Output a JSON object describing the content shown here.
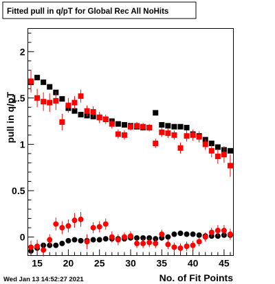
{
  "chart_data": {
    "type": "scatter",
    "title": "Fitted pull in q/pT for Global Rec All NoHits",
    "xlabel": "No. of Fit Points",
    "ylabel": "pull in q/pT",
    "timestamp": "Wed Jan 13 14:52:27 2021",
    "xlim": [
      13.5,
      46.5
    ],
    "ylim": [
      -0.2,
      2.25
    ],
    "xticks": [
      15,
      20,
      25,
      30,
      35,
      40,
      45
    ],
    "yticks": [
      0,
      0.5,
      1,
      1.5,
      2
    ],
    "ytick_labels": [
      "0",
      "0.5",
      "1",
      "1.5",
      "2"
    ],
    "grid": false,
    "legend": "none",
    "colors": {
      "series_black": "#000000",
      "series_red": "#ff0000"
    },
    "series": [
      {
        "color": "#000000",
        "marker": "square",
        "x": [
          14,
          15,
          16,
          17,
          18,
          19,
          20,
          21,
          22,
          23,
          24,
          25,
          26,
          27,
          28,
          29,
          30,
          31,
          32,
          33,
          34,
          35,
          36,
          37,
          38,
          39,
          40,
          41,
          42,
          43,
          44,
          45,
          46
        ],
        "y": [
          1.67,
          1.72,
          1.67,
          1.62,
          1.56,
          1.49,
          1.39,
          1.36,
          1.32,
          1.31,
          1.3,
          1.29,
          1.27,
          1.25,
          1.22,
          1.21,
          1.2,
          1.19,
          1.18,
          1.18,
          1.34,
          1.21,
          1.2,
          1.19,
          1.19,
          1.18,
          1.11,
          1.09,
          1.05,
          1.01,
          0.97,
          0.94,
          0.93
        ],
        "err": [
          0.01,
          0.01,
          0.01,
          0.01,
          0.01,
          0.01,
          0.01,
          0.01,
          0.01,
          0.01,
          0.01,
          0.01,
          0.01,
          0.01,
          0.01,
          0.01,
          0.01,
          0.01,
          0.01,
          0.01,
          0.01,
          0.01,
          0.01,
          0.01,
          0.01,
          0.01,
          0.01,
          0.01,
          0.01,
          0.01,
          0.01,
          0.01,
          0.01
        ]
      },
      {
        "color": "#ff0000",
        "marker": "square",
        "x": [
          14,
          15,
          16,
          17,
          18,
          19,
          20,
          21,
          22,
          23,
          24,
          25,
          26,
          27,
          28,
          29,
          30,
          31,
          32,
          33,
          34,
          35,
          36,
          37,
          38,
          39,
          40,
          41,
          42,
          43,
          44,
          45,
          46
        ],
        "y": [
          1.68,
          1.5,
          1.46,
          1.45,
          1.47,
          1.24,
          1.42,
          1.45,
          1.52,
          1.36,
          1.35,
          1.29,
          1.27,
          1.22,
          1.11,
          1.1,
          1.19,
          1.2,
          1.19,
          1.18,
          1.01,
          1.13,
          1.12,
          1.1,
          0.96,
          1.09,
          1.1,
          1.08,
          1.0,
          0.93,
          0.87,
          0.89,
          0.77
        ],
        "err": [
          0.12,
          0.1,
          0.1,
          0.1,
          0.1,
          0.09,
          0.08,
          0.07,
          0.07,
          0.06,
          0.06,
          0.06,
          0.05,
          0.05,
          0.05,
          0.05,
          0.04,
          0.04,
          0.04,
          0.04,
          0.05,
          0.05,
          0.05,
          0.05,
          0.06,
          0.06,
          0.06,
          0.06,
          0.06,
          0.07,
          0.08,
          0.09,
          0.12
        ]
      },
      {
        "color": "#000000",
        "marker": "circle",
        "x": [
          14,
          15,
          16,
          17,
          18,
          19,
          20,
          21,
          22,
          23,
          24,
          25,
          26,
          27,
          28,
          29,
          30,
          31,
          32,
          33,
          34,
          35,
          36,
          37,
          38,
          39,
          40,
          41,
          42,
          43,
          44,
          45,
          46
        ],
        "y": [
          -0.15,
          -0.12,
          -0.09,
          -0.09,
          -0.09,
          -0.07,
          -0.04,
          -0.03,
          -0.04,
          -0.04,
          -0.03,
          -0.03,
          -0.02,
          -0.02,
          -0.02,
          -0.02,
          -0.01,
          -0.01,
          -0.01,
          -0.01,
          -0.02,
          -0.01,
          0.0,
          0.03,
          0.04,
          0.03,
          0.03,
          0.02,
          0.01,
          0.01,
          0.01,
          0.02,
          0.02
        ],
        "err": [
          0.02,
          0.02,
          0.02,
          0.02,
          0.02,
          0.02,
          0.02,
          0.02,
          0.02,
          0.02,
          0.02,
          0.02,
          0.02,
          0.02,
          0.02,
          0.02,
          0.02,
          0.02,
          0.02,
          0.02,
          0.02,
          0.02,
          0.02,
          0.02,
          0.02,
          0.02,
          0.02,
          0.02,
          0.02,
          0.02,
          0.02,
          0.02,
          0.02
        ]
      },
      {
        "color": "#ff0000",
        "marker": "circle",
        "x": [
          14,
          15,
          16,
          17,
          18,
          19,
          20,
          21,
          22,
          23,
          24,
          25,
          26,
          27,
          28,
          29,
          30,
          31,
          32,
          33,
          34,
          35,
          36,
          37,
          38,
          39,
          40,
          41,
          42,
          43,
          44,
          45,
          46
        ],
        "y": [
          -0.11,
          -0.1,
          -0.14,
          -0.03,
          0.14,
          0.1,
          0.12,
          0.18,
          0.19,
          -0.05,
          0.1,
          0.11,
          0.14,
          0.0,
          -0.03,
          0.0,
          0.01,
          -0.07,
          -0.07,
          -0.06,
          -0.07,
          0.03,
          -0.08,
          -0.11,
          -0.12,
          -0.1,
          -0.09,
          -0.05,
          0.0,
          0.05,
          0.07,
          0.07,
          0.03
        ],
        "err": [
          0.07,
          0.07,
          0.07,
          0.06,
          0.07,
          0.07,
          0.07,
          0.08,
          0.08,
          0.08,
          0.06,
          0.06,
          0.06,
          0.06,
          0.06,
          0.05,
          0.05,
          0.05,
          0.05,
          0.05,
          0.05,
          0.05,
          0.05,
          0.05,
          0.05,
          0.05,
          0.05,
          0.05,
          0.05,
          0.05,
          0.06,
          0.06,
          0.06
        ]
      }
    ]
  }
}
